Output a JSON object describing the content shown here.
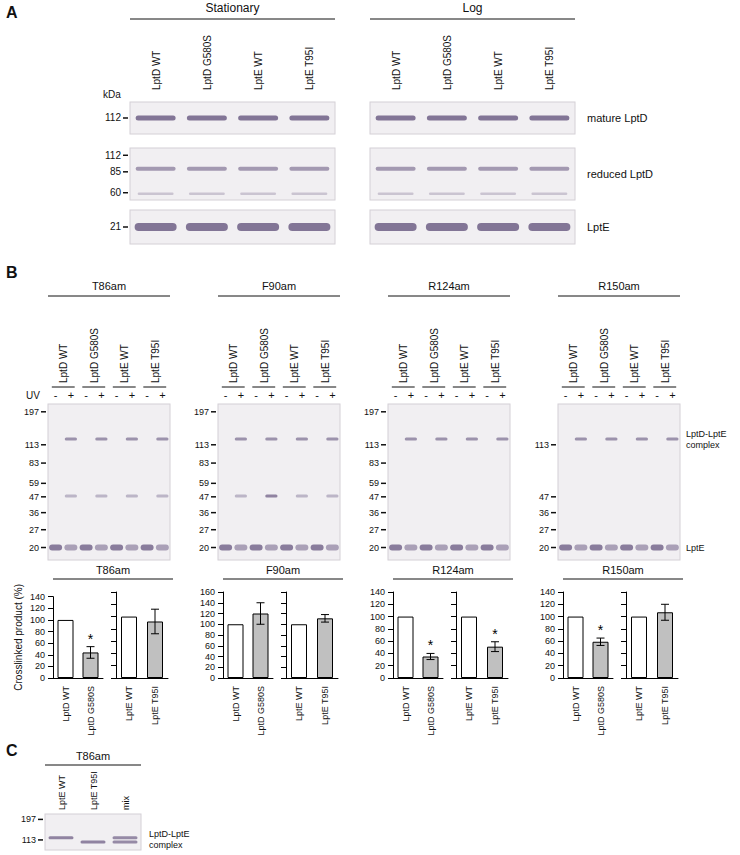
{
  "panels": {
    "A": {
      "label": "A",
      "conditions": [
        "Stationary",
        "Log"
      ],
      "lanes": [
        "LptD WT",
        "LptD G580S",
        "LptE WT",
        "LptE T95I"
      ],
      "unit": "kDa",
      "blots": [
        {
          "name": "mature LptD",
          "markers": [
            112
          ]
        },
        {
          "name": "reduced LptD",
          "markers": [
            112,
            85,
            60
          ]
        },
        {
          "name": "LptE",
          "markers": [
            21
          ]
        }
      ]
    },
    "B": {
      "label": "B",
      "lanes": [
        "LptD WT",
        "LptD G580S",
        "LptE WT",
        "LptE T95I"
      ],
      "uv_label": "UV",
      "uv_states": [
        "-",
        "+"
      ],
      "blots": [
        {
          "name": "T86am",
          "markers": [
            197,
            113,
            83,
            59,
            47,
            36,
            27,
            20
          ]
        },
        {
          "name": "F90am",
          "markers": [
            197,
            113,
            83,
            59,
            47,
            36,
            27,
            20
          ]
        },
        {
          "name": "R124am",
          "markers": [
            197,
            113,
            83,
            59,
            47,
            36,
            27,
            20
          ]
        },
        {
          "name": "R150am",
          "markers": [
            113,
            47,
            36,
            27,
            20
          ]
        }
      ],
      "band_labels": [
        "LptD-LptE complex",
        "LptE"
      ]
    },
    "C": {
      "label": "C",
      "name": "T86am",
      "lanes": [
        "LptE WT",
        "LptE T95I",
        "mix"
      ],
      "markers": [
        197,
        113
      ],
      "band_label": "LptD-LptE complex"
    }
  },
  "chart_data": [
    {
      "type": "bar",
      "title": "T86am",
      "ylabel": "Crosslinked product (%)",
      "categories": [
        "LptD WT",
        "LptD G580S"
      ],
      "values": [
        100,
        44
      ],
      "errors": [
        0,
        10
      ],
      "annotations": [
        null,
        "*"
      ],
      "colors": [
        "#ffffff",
        "#c0c0c0"
      ],
      "ylim": [
        0,
        140
      ],
      "yticks": [
        0,
        20,
        40,
        60,
        80,
        100,
        120,
        140
      ],
      "grid": false
    },
    {
      "type": "bar",
      "categories": [
        "LptE WT",
        "LptE T95I"
      ],
      "values": [
        100,
        92
      ],
      "errors": [
        0,
        20
      ],
      "annotations": [
        null,
        null
      ],
      "colors": [
        "#ffffff",
        "#c0c0c0"
      ],
      "ylim": [
        0,
        140
      ],
      "yticks": [
        0,
        20,
        40,
        60,
        80,
        100,
        120,
        140
      ],
      "grid": false,
      "tick_labels": "x"
    },
    {
      "type": "bar",
      "title": "F90am",
      "categories": [
        "LptD WT",
        "LptD G580S"
      ],
      "values": [
        100,
        120
      ],
      "errors": [
        0,
        20
      ],
      "annotations": [
        null,
        null
      ],
      "colors": [
        "#ffffff",
        "#c0c0c0"
      ],
      "ylim": [
        0,
        160
      ],
      "yticks": [
        0,
        20,
        40,
        60,
        80,
        100,
        120,
        140,
        160
      ],
      "grid": false
    },
    {
      "type": "bar",
      "categories": [
        "LptE WT",
        "LptE T95I"
      ],
      "values": [
        100,
        111
      ],
      "errors": [
        0,
        7
      ],
      "annotations": [
        null,
        null
      ],
      "colors": [
        "#ffffff",
        "#c0c0c0"
      ],
      "ylim": [
        0,
        160
      ],
      "yticks": [
        0,
        20,
        40,
        60,
        80,
        100,
        120,
        140,
        160
      ],
      "grid": false,
      "tick_labels": "x"
    },
    {
      "type": "bar",
      "title": "R124am",
      "categories": [
        "LptD WT",
        "LptD G580S"
      ],
      "values": [
        100,
        35
      ],
      "errors": [
        0,
        5
      ],
      "annotations": [
        null,
        "*"
      ],
      "colors": [
        "#ffffff",
        "#c0c0c0"
      ],
      "ylim": [
        0,
        140
      ],
      "yticks": [
        0,
        20,
        40,
        60,
        80,
        100,
        120,
        140
      ],
      "grid": false
    },
    {
      "type": "bar",
      "categories": [
        "LptE WT",
        "LptE T95I"
      ],
      "values": [
        100,
        51
      ],
      "errors": [
        0,
        8
      ],
      "annotations": [
        null,
        "*"
      ],
      "colors": [
        "#ffffff",
        "#c0c0c0"
      ],
      "ylim": [
        0,
        140
      ],
      "yticks": [
        0,
        20,
        40,
        60,
        80,
        100,
        120,
        140
      ],
      "grid": false,
      "tick_labels": "x"
    },
    {
      "type": "bar",
      "title": "R150am",
      "categories": [
        "LptD WT",
        "LptD G580S"
      ],
      "values": [
        100,
        59
      ],
      "errors": [
        0,
        6
      ],
      "annotations": [
        null,
        "*"
      ],
      "colors": [
        "#ffffff",
        "#c0c0c0"
      ],
      "ylim": [
        0,
        140
      ],
      "yticks": [
        0,
        20,
        40,
        60,
        80,
        100,
        120,
        140
      ],
      "grid": false
    },
    {
      "type": "bar",
      "categories": [
        "LptE WT",
        "LptE T95I"
      ],
      "values": [
        100,
        107
      ],
      "errors": [
        0,
        13
      ],
      "annotations": [
        null,
        null
      ],
      "colors": [
        "#ffffff",
        "#c0c0c0"
      ],
      "ylim": [
        0,
        140
      ],
      "yticks": [
        0,
        20,
        40,
        60,
        80,
        100,
        120,
        140
      ],
      "grid": false,
      "tick_labels": "x"
    }
  ]
}
